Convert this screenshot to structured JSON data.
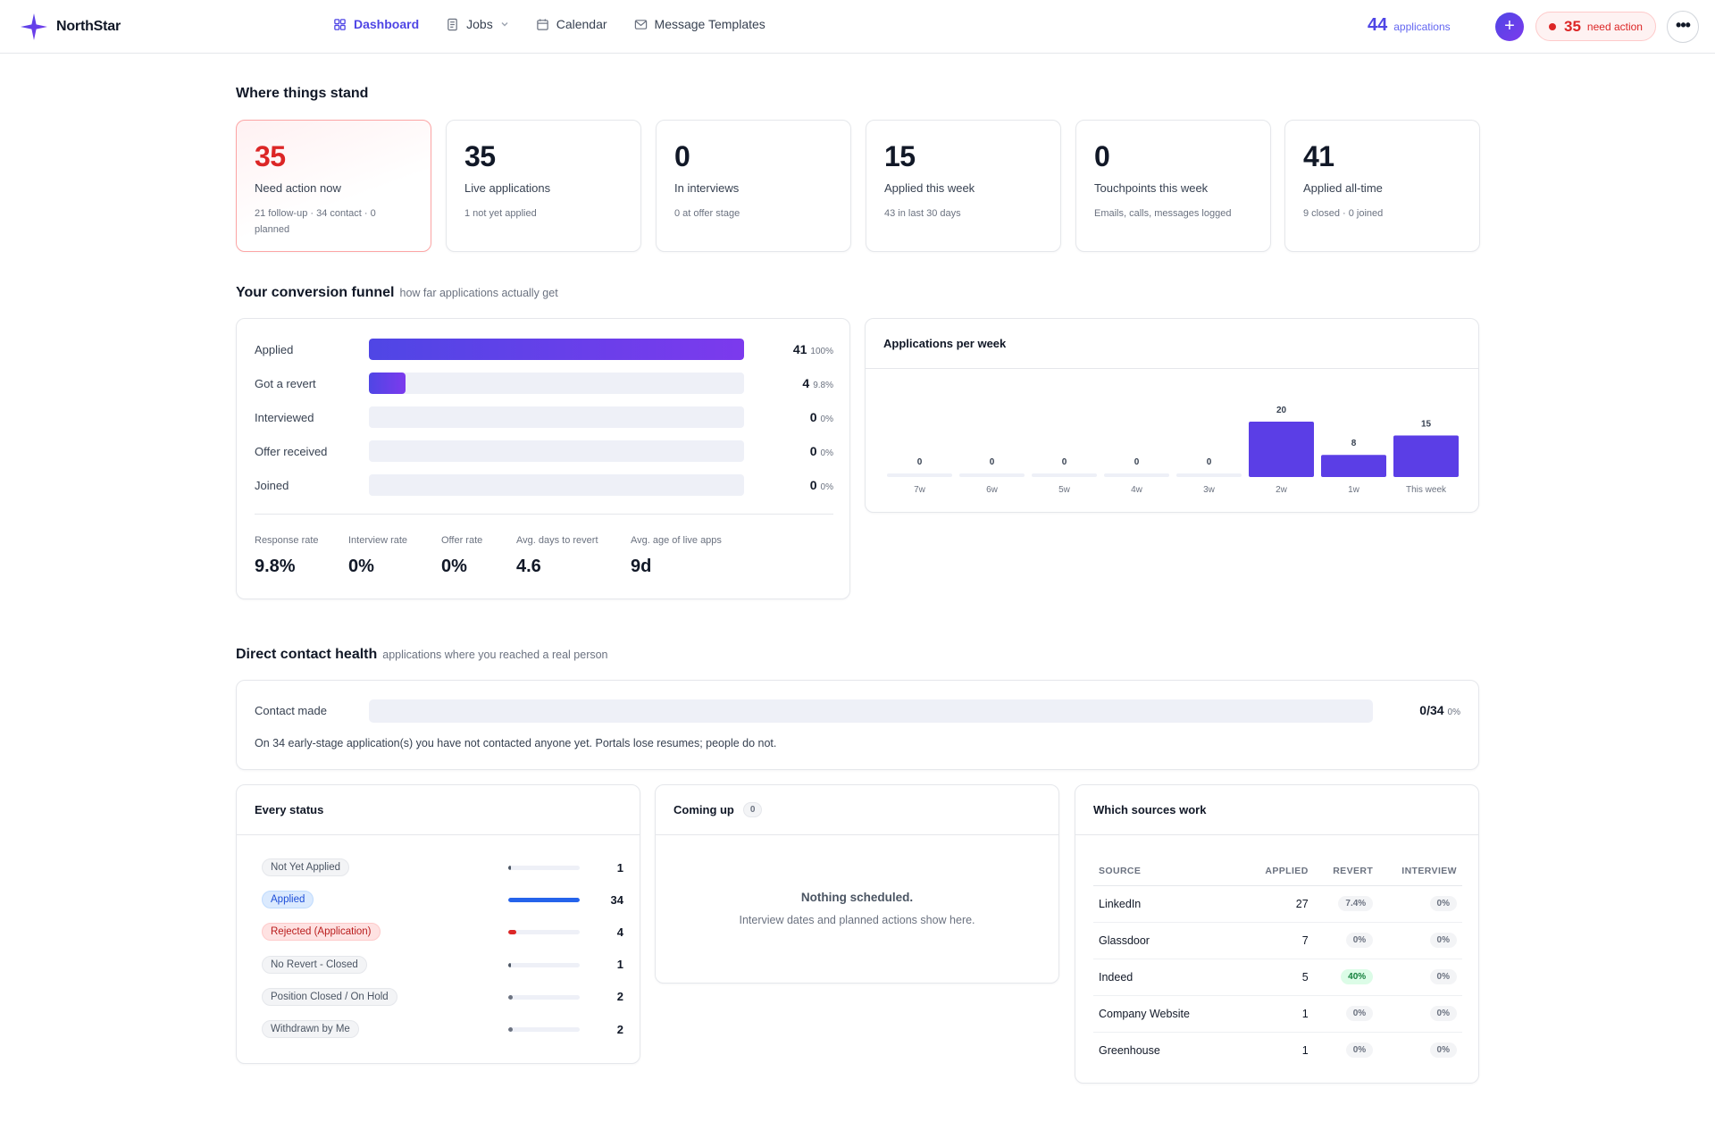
{
  "app": {
    "name": "NorthStar"
  },
  "nav": [
    {
      "label": "Dashboard",
      "icon": "grid-icon",
      "active": true
    },
    {
      "label": "Jobs",
      "icon": "document-icon",
      "dropdown": true
    },
    {
      "label": "Calendar",
      "icon": "calendar-icon"
    },
    {
      "label": "Message Templates",
      "icon": "mail-icon"
    }
  ],
  "header": {
    "applications_count": "44",
    "applications_label": "applications",
    "add_label": "+",
    "need_action_count": "35",
    "need_action_label": "need action",
    "more_label": "•••"
  },
  "colors": {
    "accent": "#4f46e5",
    "accent2": "#7c3aed",
    "danger": "#dc2626",
    "success": "#15803d"
  },
  "overview": {
    "title": "Where things stand",
    "stats": [
      {
        "value": "35",
        "title": "Need action now",
        "sub": "21 follow-up · 34 contact · 0 planned",
        "alert": true
      },
      {
        "value": "35",
        "title": "Live applications",
        "sub": "1 not yet applied"
      },
      {
        "value": "0",
        "title": "In interviews",
        "sub": "0 at offer stage"
      },
      {
        "value": "15",
        "title": "Applied this week",
        "sub": "43 in last 30 days"
      },
      {
        "value": "0",
        "title": "Touchpoints this week",
        "sub": "Emails, calls, messages logged"
      },
      {
        "value": "41",
        "title": "Applied all-time",
        "sub": "9 closed · 0 joined"
      }
    ]
  },
  "funnel": {
    "title": "Your conversion funnel",
    "subtitle": "how far applications actually get",
    "rows": [
      {
        "label": "Applied",
        "value": "41",
        "pct": "100%",
        "fraction": 1.0
      },
      {
        "label": "Got a revert",
        "value": "4",
        "pct": "9.8%",
        "fraction": 0.098
      },
      {
        "label": "Interviewed",
        "value": "0",
        "pct": "0%",
        "fraction": 0
      },
      {
        "label": "Offer received",
        "value": "0",
        "pct": "0%",
        "fraction": 0
      },
      {
        "label": "Joined",
        "value": "0",
        "pct": "0%",
        "fraction": 0
      }
    ],
    "metrics": [
      {
        "label": "Response rate",
        "value": "9.8%"
      },
      {
        "label": "Interview rate",
        "value": "0%"
      },
      {
        "label": "Offer rate",
        "value": "0%"
      },
      {
        "label": "Avg. days to revert",
        "value": "4.6"
      },
      {
        "label": "Avg. age of live apps",
        "value": "9d"
      }
    ]
  },
  "chart_data": {
    "type": "bar",
    "title": "Applications per week",
    "categories": [
      "7w",
      "6w",
      "5w",
      "4w",
      "3w",
      "2w",
      "1w",
      "This week"
    ],
    "values": [
      0,
      0,
      0,
      0,
      0,
      20,
      8,
      15
    ],
    "ylim": [
      0,
      20
    ],
    "grid": false,
    "data_labels": true
  },
  "contact": {
    "title": "Direct contact health",
    "subtitle": "applications where you reached a real person",
    "label": "Contact made",
    "value": "0/34",
    "pct": "0%",
    "fraction": 0,
    "note": "On 34 early-stage application(s) you have not contacted anyone yet. Portals lose resumes; people do not."
  },
  "statuses": {
    "title": "Every status",
    "max": 34,
    "rows": [
      {
        "label": "Not Yet Applied",
        "count": "1",
        "n": 1,
        "kind": "neutral",
        "color": "#4b5563"
      },
      {
        "label": "Applied",
        "count": "34",
        "n": 34,
        "kind": "applied",
        "color": "#2563eb"
      },
      {
        "label": "Rejected (Application)",
        "count": "4",
        "n": 4,
        "kind": "rejected",
        "color": "#dc2626"
      },
      {
        "label": "No Revert - Closed",
        "count": "1",
        "n": 1,
        "kind": "neutral",
        "color": "#4b5563"
      },
      {
        "label": "Position Closed / On Hold",
        "count": "2",
        "n": 2,
        "kind": "neutral",
        "color": "#6b7280"
      },
      {
        "label": "Withdrawn by Me",
        "count": "2",
        "n": 2,
        "kind": "neutral",
        "color": "#6b7280"
      }
    ]
  },
  "coming_up": {
    "title": "Coming up",
    "count": "0",
    "empty_title": "Nothing scheduled.",
    "empty_sub": "Interview dates and planned actions show here."
  },
  "sources": {
    "title": "Which sources work",
    "columns": [
      "SOURCE",
      "APPLIED",
      "REVERT",
      "INTERVIEW"
    ],
    "rows": [
      {
        "source": "LinkedIn",
        "applied": "27",
        "revert": "7.4%",
        "interview": "0%"
      },
      {
        "source": "Glassdoor",
        "applied": "7",
        "revert": "0%",
        "interview": "0%"
      },
      {
        "source": "Indeed",
        "applied": "5",
        "revert": "40%",
        "interview": "0%",
        "revert_good": true
      },
      {
        "source": "Company Website",
        "applied": "1",
        "revert": "0%",
        "interview": "0%"
      },
      {
        "source": "Greenhouse",
        "applied": "1",
        "revert": "0%",
        "interview": "0%"
      }
    ]
  }
}
